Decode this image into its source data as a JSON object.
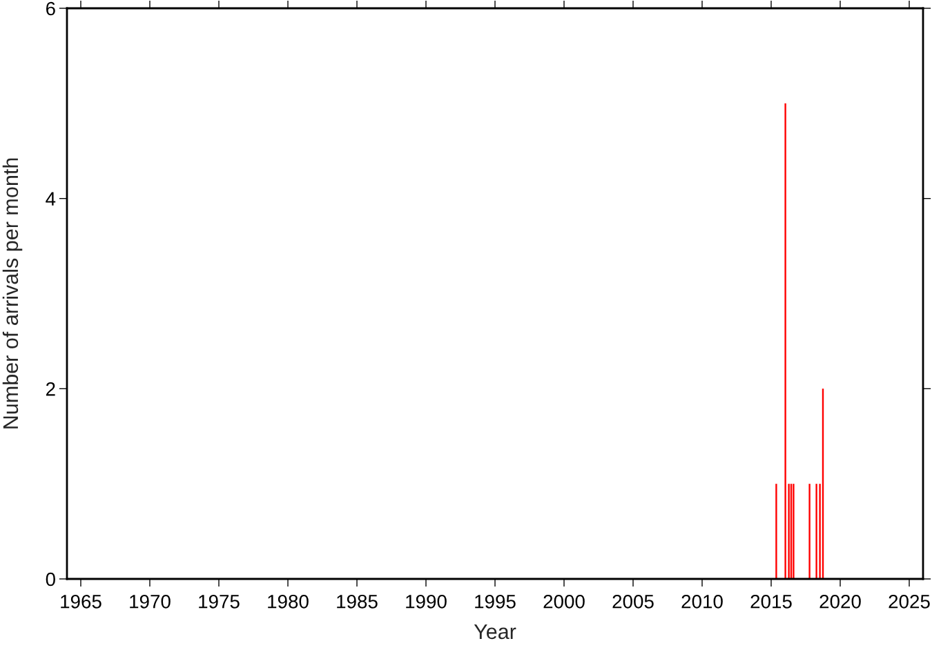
{
  "chart_data": {
    "type": "bar",
    "xlabel": "Year",
    "ylabel": "Number of arrivals per month",
    "x": [
      2015.37,
      2016.03,
      2016.28,
      2016.45,
      2016.62,
      2017.78,
      2018.28,
      2018.53,
      2018.75
    ],
    "values": [
      1,
      5,
      1,
      1,
      1,
      1,
      1,
      1,
      2
    ],
    "color": "#ff0000",
    "xlim": [
      1964,
      2026
    ],
    "xticks": [
      1965,
      1970,
      1975,
      1980,
      1985,
      1990,
      1995,
      2000,
      2005,
      2010,
      2015,
      2020,
      2025
    ],
    "ylim": [
      0,
      6
    ],
    "yticks": [
      0,
      2,
      4,
      6
    ],
    "grid": false,
    "legend": false
  }
}
